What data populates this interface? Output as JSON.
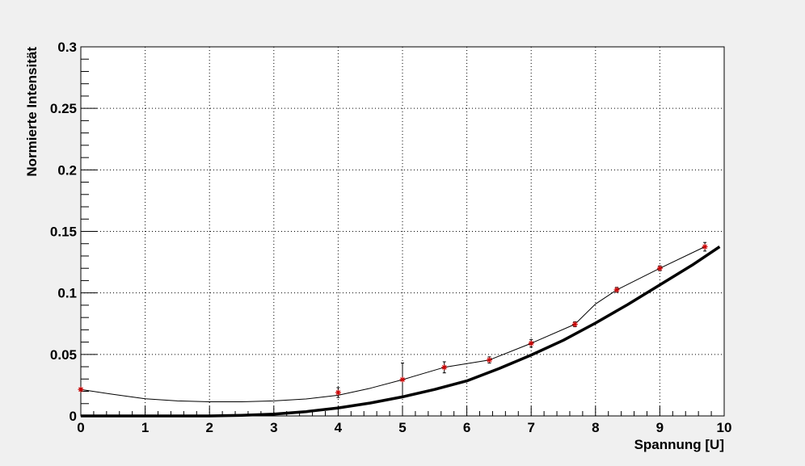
{
  "chart_data": {
    "type": "scatter",
    "title": "",
    "xlabel": "Spannung [U]",
    "ylabel": "Normierte Intensität",
    "xlim": [
      0,
      10
    ],
    "ylim": [
      0,
      0.3
    ],
    "xticks": [
      0,
      1,
      2,
      3,
      4,
      5,
      6,
      7,
      8,
      9,
      10
    ],
    "yticks": [
      0,
      0.05,
      0.1,
      0.15,
      0.2,
      0.25,
      0.3
    ],
    "xtick_labels": [
      "0",
      "1",
      "2",
      "3",
      "4",
      "5",
      "6",
      "7",
      "8",
      "9",
      "10"
    ],
    "ytick_labels": [
      "0",
      "0.05",
      "0.1",
      "0.15",
      "0.2",
      "0.25",
      "0.3"
    ],
    "grid": true,
    "legend": "none",
    "colors": {
      "frame_bg": "#f0f0f0",
      "plot_bg": "#ffffff",
      "marker": "#cc0000",
      "line": "#000000"
    },
    "series": [
      {
        "kind": "points-with-error-bars",
        "x": [
          0,
          4,
          5,
          5.65,
          6.35,
          7,
          7.68,
          8.33,
          9,
          9.7
        ],
        "y": [
          0.0215,
          0.019,
          0.0295,
          0.0395,
          0.0455,
          0.059,
          0.0745,
          0.1025,
          0.12,
          0.1375
        ],
        "yerr": [
          0.001,
          0.004,
          0.0135,
          0.0045,
          0.0025,
          0.003,
          0.002,
          0.002,
          0.002,
          0.0035
        ]
      },
      {
        "kind": "connecting-curve",
        "x": [
          0,
          0.5,
          1,
          1.5,
          2,
          2.5,
          3,
          3.5,
          4,
          4.5,
          5,
          5.65,
          6.35,
          7,
          7.68,
          8,
          8.33,
          9,
          9.7
        ],
        "y": [
          0.0215,
          0.0175,
          0.014,
          0.0122,
          0.0115,
          0.0115,
          0.0122,
          0.0138,
          0.0168,
          0.0225,
          0.0295,
          0.0395,
          0.0455,
          0.059,
          0.0745,
          0.091,
          0.1025,
          0.12,
          0.1375
        ]
      },
      {
        "kind": "thick-curve",
        "x": [
          0,
          1,
          2,
          2.5,
          3,
          3.5,
          4,
          4.5,
          5,
          5.5,
          6,
          6.5,
          7,
          7.5,
          8,
          8.5,
          9,
          9.5,
          9.93
        ],
        "y": [
          0,
          0,
          0,
          0.0005,
          0.0015,
          0.0035,
          0.0065,
          0.0105,
          0.0155,
          0.0215,
          0.0285,
          0.0385,
          0.0495,
          0.0615,
          0.0755,
          0.0905,
          0.1065,
          0.1225,
          0.1375
        ]
      }
    ]
  }
}
